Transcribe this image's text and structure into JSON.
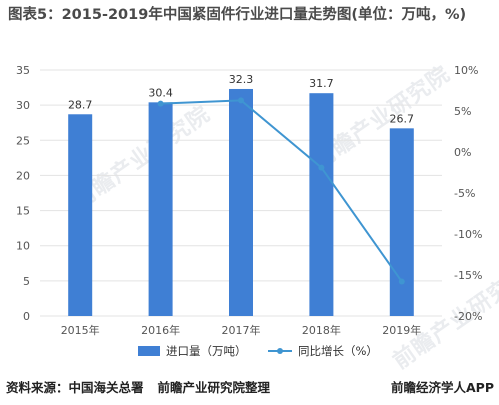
{
  "title": "图表5：2015-2019年中国紧固件行业进口量走势图(单位：万吨，%)",
  "footer": {
    "source_label": "资料来源：中国海关总署",
    "org": "前瞻产业研究院整理",
    "brand": "前瞻经济学人APP"
  },
  "watermark_text": "前瞻产业研究院",
  "colors": {
    "bar": "#3f7fd4",
    "line": "#3f95d1",
    "grid": "#e3e3e3",
    "axis_text": "#555555"
  },
  "chart_data": {
    "type": "bar",
    "categories": [
      "2015年",
      "2016年",
      "2017年",
      "2018年",
      "2019年"
    ],
    "series": [
      {
        "name": "进口量（万吨）",
        "type": "bar",
        "axis": "left",
        "values": [
          28.7,
          30.4,
          32.3,
          31.7,
          26.7
        ]
      },
      {
        "name": "同比增长（%）",
        "type": "line",
        "axis": "right",
        "values": [
          null,
          5.9,
          6.3,
          -1.9,
          -15.8
        ]
      }
    ],
    "ylim_left": [
      0,
      35
    ],
    "yticks_left": [
      "0",
      "5",
      "10",
      "15",
      "20",
      "25",
      "30",
      "35"
    ],
    "ylim_right": [
      -20,
      10
    ],
    "yticks_right": [
      "-20%",
      "-15%",
      "-10%",
      "-5%",
      "0%",
      "5%",
      "10%"
    ],
    "grid": true,
    "legend_position": "bottom"
  }
}
